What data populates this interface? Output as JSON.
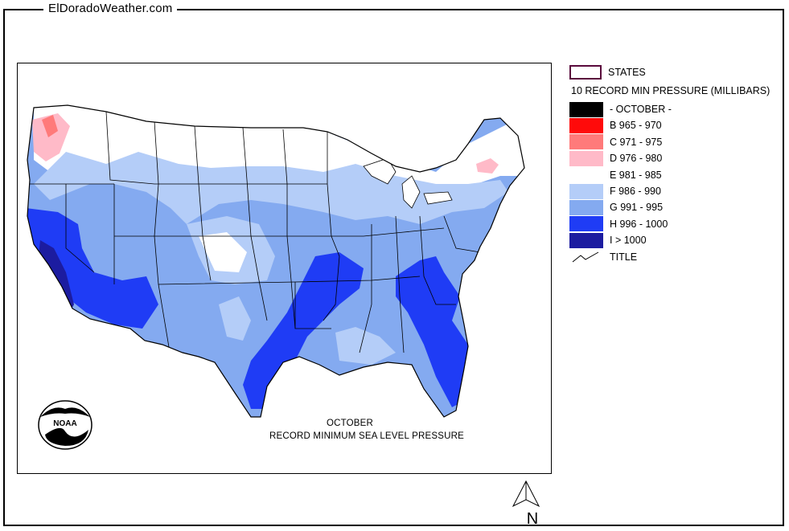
{
  "header": {
    "site_title": "ElDoradoWeather.com"
  },
  "map": {
    "caption_line1": "OCTOBER",
    "caption_line2": "RECORD  MINIMUM SEA LEVEL PRESSURE",
    "logo_text": "NOAA",
    "north_label": "N"
  },
  "legend": {
    "states_label": "STATES",
    "header": "10 RECORD MIN PRESSURE (MILLIBARS)",
    "title_label": "TITLE",
    "items": [
      {
        "label": "- OCTOBER -",
        "color": "#000000"
      },
      {
        "label": "B 965 - 970",
        "color": "#ff0a0a"
      },
      {
        "label": "C 971 - 975",
        "color": "#ff7a7a"
      },
      {
        "label": "D 976 - 980",
        "color": "#ffbac8"
      },
      {
        "label": "E 981 - 985",
        "color": "#ffffff"
      },
      {
        "label": "F 986 - 990",
        "color": "#b4cdf8"
      },
      {
        "label": "G 991 - 995",
        "color": "#84aaf0"
      },
      {
        "label": "H 996 - 1000",
        "color": "#1f3cf5"
      },
      {
        "label": "I > 1000",
        "color": "#1c1ca0"
      }
    ]
  }
}
